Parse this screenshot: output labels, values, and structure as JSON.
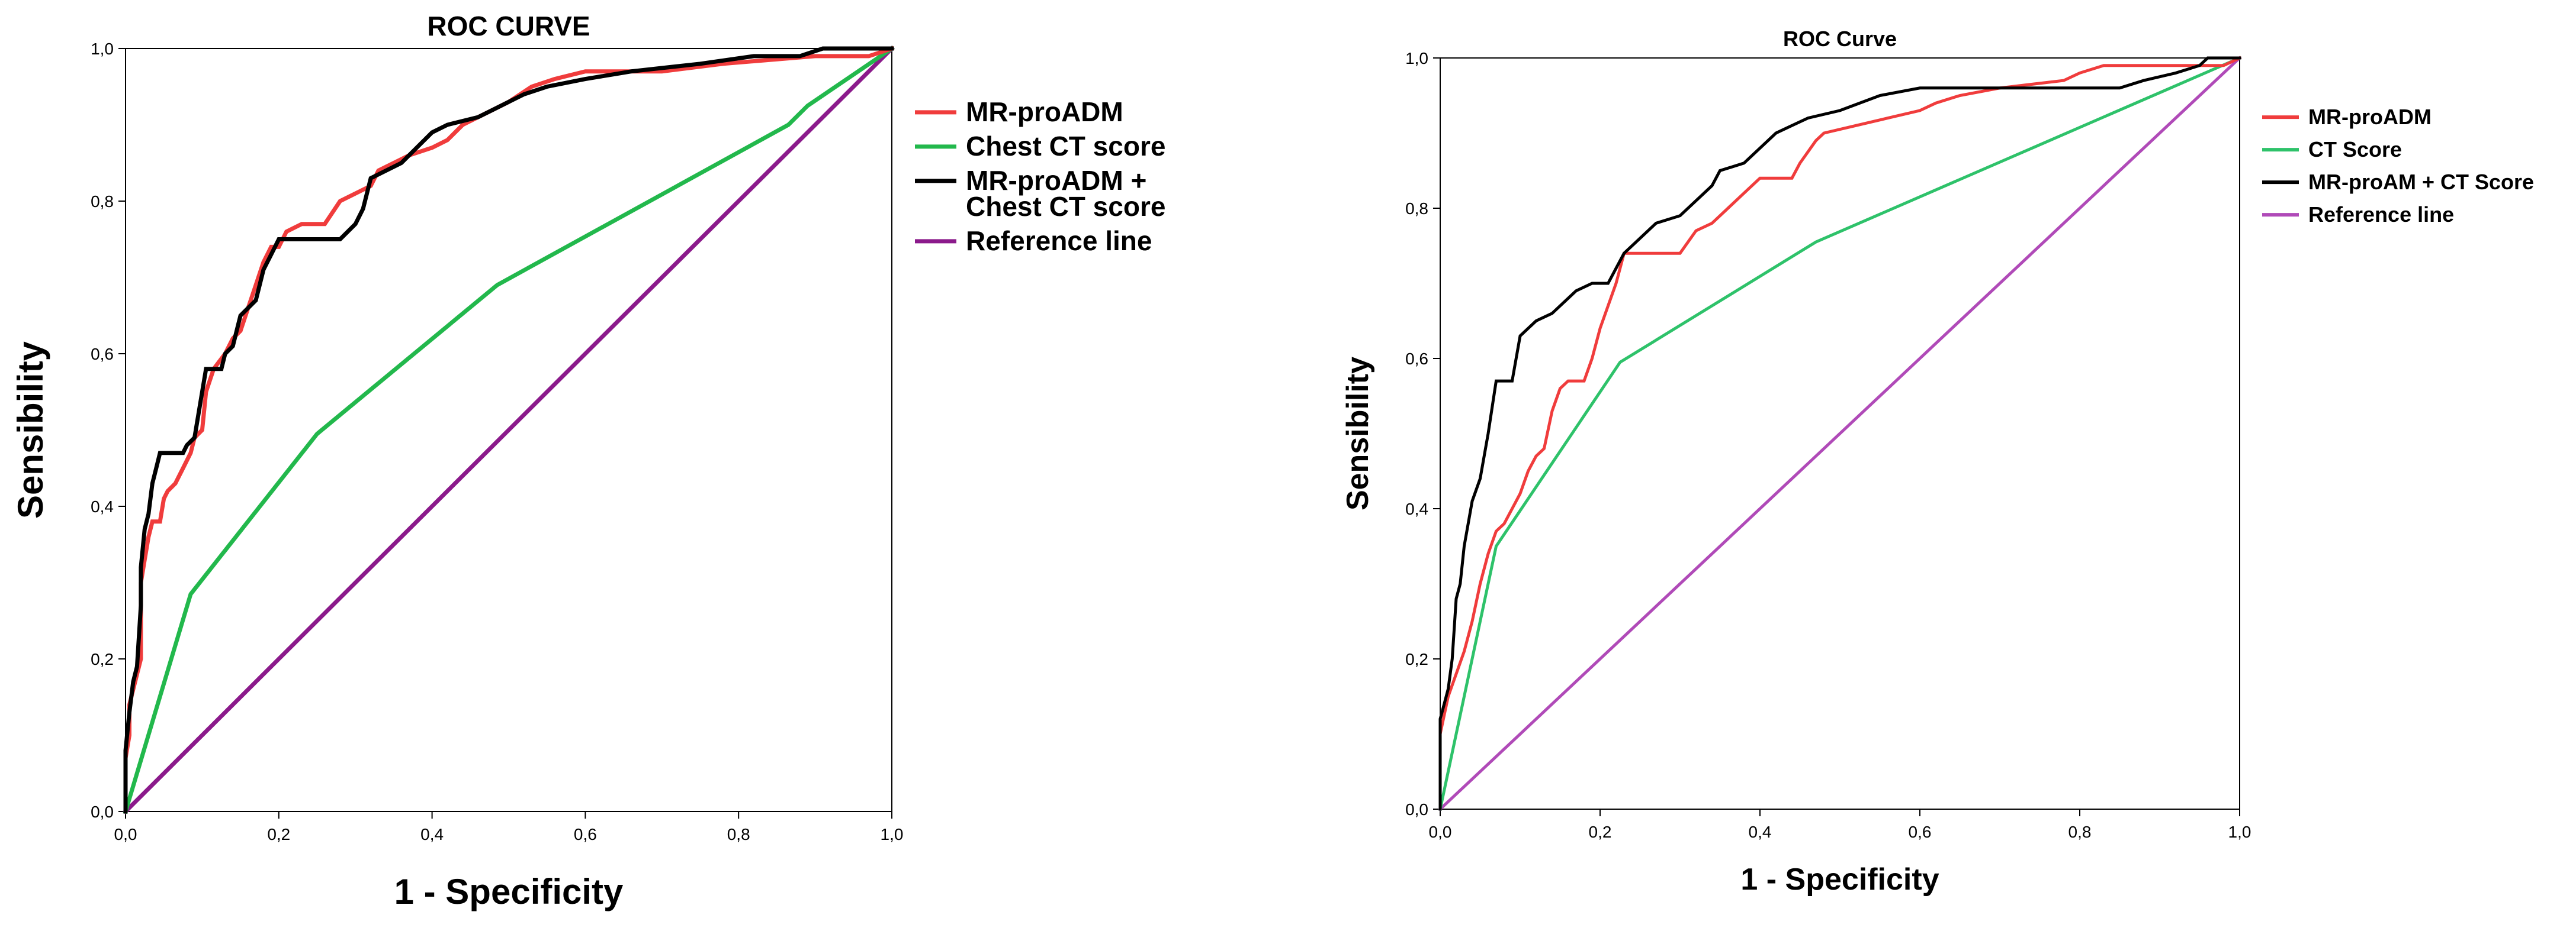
{
  "chart_data": [
    {
      "type": "line",
      "title": "ROC CURVE",
      "xlabel": "1 - Specificity",
      "ylabel": "Sensibility",
      "xlim": [
        0,
        1
      ],
      "ylim": [
        0,
        1
      ],
      "x_ticks": [
        "0,0",
        "0,2",
        "0,4",
        "0,6",
        "0,8",
        "1,0"
      ],
      "y_ticks": [
        "0,0",
        "0,2",
        "0,4",
        "0,6",
        "0,8",
        "1,0"
      ],
      "legend_position": "right",
      "series": [
        {
          "name": "MR-proADM",
          "color": "#f03c3c",
          "points": [
            [
              0,
              0
            ],
            [
              0,
              0.07
            ],
            [
              0.005,
              0.1
            ],
            [
              0.005,
              0.14
            ],
            [
              0.01,
              0.16
            ],
            [
              0.015,
              0.18
            ],
            [
              0.02,
              0.2
            ],
            [
              0.02,
              0.3
            ],
            [
              0.025,
              0.33
            ],
            [
              0.03,
              0.36
            ],
            [
              0.035,
              0.38
            ],
            [
              0.045,
              0.38
            ],
            [
              0.05,
              0.41
            ],
            [
              0.055,
              0.42
            ],
            [
              0.065,
              0.43
            ],
            [
              0.075,
              0.45
            ],
            [
              0.085,
              0.47
            ],
            [
              0.09,
              0.49
            ],
            [
              0.1,
              0.5
            ],
            [
              0.105,
              0.55
            ],
            [
              0.115,
              0.58
            ],
            [
              0.13,
              0.6
            ],
            [
              0.14,
              0.62
            ],
            [
              0.15,
              0.63
            ],
            [
              0.16,
              0.66
            ],
            [
              0.17,
              0.69
            ],
            [
              0.18,
              0.72
            ],
            [
              0.19,
              0.74
            ],
            [
              0.2,
              0.74
            ],
            [
              0.21,
              0.76
            ],
            [
              0.23,
              0.77
            ],
            [
              0.26,
              0.77
            ],
            [
              0.28,
              0.8
            ],
            [
              0.3,
              0.81
            ],
            [
              0.32,
              0.82
            ],
            [
              0.33,
              0.84
            ],
            [
              0.35,
              0.85
            ],
            [
              0.37,
              0.86
            ],
            [
              0.4,
              0.87
            ],
            [
              0.42,
              0.88
            ],
            [
              0.44,
              0.9
            ],
            [
              0.46,
              0.91
            ],
            [
              0.48,
              0.92
            ],
            [
              0.5,
              0.93
            ],
            [
              0.53,
              0.95
            ],
            [
              0.56,
              0.96
            ],
            [
              0.6,
              0.97
            ],
            [
              0.7,
              0.97
            ],
            [
              0.78,
              0.98
            ],
            [
              0.9,
              0.99
            ],
            [
              0.97,
              0.99
            ],
            [
              1,
              1
            ]
          ]
        },
        {
          "name": "Chest CT score",
          "color": "#22b84c",
          "points": [
            [
              0,
              0
            ],
            [
              0.085,
              0.285
            ],
            [
              0.25,
              0.495
            ],
            [
              0.485,
              0.69
            ],
            [
              0.865,
              0.9
            ],
            [
              0.89,
              0.925
            ],
            [
              1,
              1
            ]
          ]
        },
        {
          "name": "MR-proADM +\nChest CT score",
          "color": "#000000",
          "points": [
            [
              0,
              0
            ],
            [
              0,
              0.08
            ],
            [
              0.005,
              0.13
            ],
            [
              0.01,
              0.17
            ],
            [
              0.015,
              0.19
            ],
            [
              0.02,
              0.27
            ],
            [
              0.02,
              0.32
            ],
            [
              0.025,
              0.37
            ],
            [
              0.03,
              0.39
            ],
            [
              0.035,
              0.43
            ],
            [
              0.04,
              0.45
            ],
            [
              0.045,
              0.47
            ],
            [
              0.075,
              0.47
            ],
            [
              0.08,
              0.48
            ],
            [
              0.09,
              0.49
            ],
            [
              0.1,
              0.55
            ],
            [
              0.105,
              0.58
            ],
            [
              0.125,
              0.58
            ],
            [
              0.13,
              0.6
            ],
            [
              0.14,
              0.61
            ],
            [
              0.145,
              0.63
            ],
            [
              0.15,
              0.65
            ],
            [
              0.17,
              0.67
            ],
            [
              0.18,
              0.71
            ],
            [
              0.19,
              0.73
            ],
            [
              0.2,
              0.75
            ],
            [
              0.22,
              0.75
            ],
            [
              0.25,
              0.75
            ],
            [
              0.28,
              0.75
            ],
            [
              0.3,
              0.77
            ],
            [
              0.31,
              0.79
            ],
            [
              0.32,
              0.83
            ],
            [
              0.34,
              0.84
            ],
            [
              0.36,
              0.85
            ],
            [
              0.38,
              0.87
            ],
            [
              0.4,
              0.89
            ],
            [
              0.42,
              0.9
            ],
            [
              0.46,
              0.91
            ],
            [
              0.48,
              0.92
            ],
            [
              0.5,
              0.93
            ],
            [
              0.52,
              0.94
            ],
            [
              0.55,
              0.95
            ],
            [
              0.6,
              0.96
            ],
            [
              0.66,
              0.97
            ],
            [
              0.75,
              0.98
            ],
            [
              0.82,
              0.99
            ],
            [
              0.88,
              0.99
            ],
            [
              0.91,
              1
            ],
            [
              1,
              1
            ]
          ]
        },
        {
          "name": "Reference line",
          "color": "#8b1a8b",
          "points": [
            [
              0,
              0
            ],
            [
              1,
              1
            ]
          ]
        }
      ]
    },
    {
      "type": "line",
      "title": "ROC Curve",
      "xlabel": "1 - Specificity",
      "ylabel": "Sensibility",
      "xlim": [
        0,
        1
      ],
      "ylim": [
        0,
        1
      ],
      "x_ticks": [
        "0,0",
        "0,2",
        "0,4",
        "0,6",
        "0,8",
        "1,0"
      ],
      "y_ticks": [
        "0,0",
        "0,2",
        "0,4",
        "0,6",
        "0,8",
        "1,0"
      ],
      "legend_position": "right",
      "series": [
        {
          "name": "MR-proADM",
          "color": "#f03c3c",
          "points": [
            [
              0,
              0
            ],
            [
              0,
              0.1
            ],
            [
              0.01,
              0.15
            ],
            [
              0.02,
              0.18
            ],
            [
              0.03,
              0.21
            ],
            [
              0.04,
              0.25
            ],
            [
              0.05,
              0.3
            ],
            [
              0.06,
              0.34
            ],
            [
              0.07,
              0.37
            ],
            [
              0.08,
              0.38
            ],
            [
              0.09,
              0.4
            ],
            [
              0.1,
              0.42
            ],
            [
              0.11,
              0.45
            ],
            [
              0.12,
              0.47
            ],
            [
              0.13,
              0.48
            ],
            [
              0.14,
              0.53
            ],
            [
              0.15,
              0.56
            ],
            [
              0.16,
              0.57
            ],
            [
              0.18,
              0.57
            ],
            [
              0.19,
              0.6
            ],
            [
              0.2,
              0.64
            ],
            [
              0.21,
              0.67
            ],
            [
              0.22,
              0.7
            ],
            [
              0.23,
              0.74
            ],
            [
              0.25,
              0.74
            ],
            [
              0.3,
              0.74
            ],
            [
              0.32,
              0.77
            ],
            [
              0.34,
              0.78
            ],
            [
              0.36,
              0.8
            ],
            [
              0.38,
              0.82
            ],
            [
              0.4,
              0.84
            ],
            [
              0.44,
              0.84
            ],
            [
              0.45,
              0.86
            ],
            [
              0.47,
              0.89
            ],
            [
              0.48,
              0.9
            ],
            [
              0.52,
              0.91
            ],
            [
              0.56,
              0.92
            ],
            [
              0.6,
              0.93
            ],
            [
              0.62,
              0.94
            ],
            [
              0.65,
              0.95
            ],
            [
              0.7,
              0.96
            ],
            [
              0.78,
              0.97
            ],
            [
              0.8,
              0.98
            ],
            [
              0.83,
              0.99
            ],
            [
              0.98,
              0.99
            ],
            [
              1,
              1
            ]
          ]
        },
        {
          "name": "CT Score",
          "color": "#2ec26a",
          "points": [
            [
              0,
              0
            ],
            [
              0.07,
              0.35
            ],
            [
              0.225,
              0.595
            ],
            [
              0.47,
              0.755
            ],
            [
              1,
              1
            ]
          ]
        },
        {
          "name": "MR-proAM + CT Score",
          "color": "#000000",
          "points": [
            [
              0,
              0
            ],
            [
              0,
              0.12
            ],
            [
              0.005,
              0.14
            ],
            [
              0.01,
              0.16
            ],
            [
              0.015,
              0.2
            ],
            [
              0.02,
              0.28
            ],
            [
              0.025,
              0.3
            ],
            [
              0.03,
              0.35
            ],
            [
              0.04,
              0.41
            ],
            [
              0.05,
              0.44
            ],
            [
              0.06,
              0.5
            ],
            [
              0.07,
              0.57
            ],
            [
              0.09,
              0.57
            ],
            [
              0.1,
              0.63
            ],
            [
              0.11,
              0.64
            ],
            [
              0.12,
              0.65
            ],
            [
              0.14,
              0.66
            ],
            [
              0.15,
              0.67
            ],
            [
              0.17,
              0.69
            ],
            [
              0.19,
              0.7
            ],
            [
              0.21,
              0.7
            ],
            [
              0.22,
              0.72
            ],
            [
              0.23,
              0.74
            ],
            [
              0.25,
              0.76
            ],
            [
              0.27,
              0.78
            ],
            [
              0.3,
              0.79
            ],
            [
              0.32,
              0.81
            ],
            [
              0.34,
              0.83
            ],
            [
              0.35,
              0.85
            ],
            [
              0.38,
              0.86
            ],
            [
              0.4,
              0.88
            ],
            [
              0.42,
              0.9
            ],
            [
              0.44,
              0.91
            ],
            [
              0.46,
              0.92
            ],
            [
              0.5,
              0.93
            ],
            [
              0.55,
              0.95
            ],
            [
              0.6,
              0.96
            ],
            [
              0.85,
              0.96
            ],
            [
              0.88,
              0.97
            ],
            [
              0.92,
              0.98
            ],
            [
              0.95,
              0.99
            ],
            [
              0.96,
              1
            ],
            [
              1,
              1
            ]
          ]
        },
        {
          "name": "Reference line",
          "color": "#b04ab8",
          "points": [
            [
              0,
              0
            ],
            [
              1,
              1
            ]
          ]
        }
      ]
    }
  ]
}
